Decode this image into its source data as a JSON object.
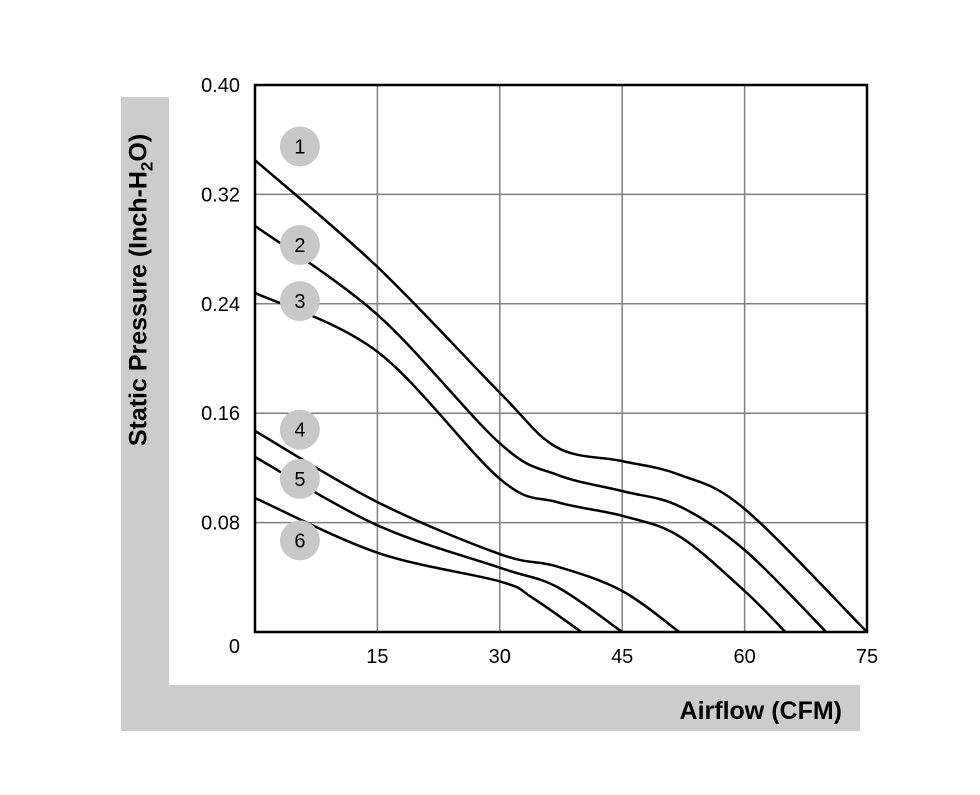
{
  "chart_data": {
    "type": "line",
    "xlabel": "Airflow (CFM)",
    "ylabel_main": "Static Pressure (Inch-H",
    "ylabel_sub": "2",
    "ylabel_end": "O)",
    "xlim": [
      0,
      75
    ],
    "ylim": [
      0,
      0.4
    ],
    "x_ticks": [
      15,
      30,
      45,
      60,
      75
    ],
    "x_tick_labels": [
      "15",
      "30",
      "45",
      "60",
      "75"
    ],
    "y_ticks": [
      0.08,
      0.16,
      0.24,
      0.32,
      0.4
    ],
    "y_tick_labels": [
      "0.08",
      "0.16",
      "0.24",
      "0.32",
      "0.40"
    ],
    "origin_label": "0",
    "grid": true,
    "series": [
      {
        "name": "1",
        "label_xy": [
          5.5,
          0.355
        ],
        "points": [
          [
            0,
            0.345
          ],
          [
            15,
            0.267
          ],
          [
            30,
            0.175
          ],
          [
            37,
            0.135
          ],
          [
            45,
            0.125
          ],
          [
            52,
            0.115
          ],
          [
            60,
            0.09
          ],
          [
            75,
            0.0
          ]
        ]
      },
      {
        "name": "2",
        "label_xy": [
          5.5,
          0.283
        ],
        "points": [
          [
            0,
            0.297
          ],
          [
            15,
            0.232
          ],
          [
            30,
            0.138
          ],
          [
            37,
            0.115
          ],
          [
            45,
            0.103
          ],
          [
            52,
            0.092
          ],
          [
            60,
            0.06
          ],
          [
            70,
            0.0
          ]
        ]
      },
      {
        "name": "3",
        "label_xy": [
          5.5,
          0.242
        ],
        "points": [
          [
            0,
            0.248
          ],
          [
            15,
            0.205
          ],
          [
            30,
            0.112
          ],
          [
            37,
            0.095
          ],
          [
            45,
            0.085
          ],
          [
            52,
            0.07
          ],
          [
            60,
            0.03
          ],
          [
            65,
            0.0
          ]
        ]
      },
      {
        "name": "4",
        "label_xy": [
          5.5,
          0.148
        ],
        "points": [
          [
            0,
            0.147
          ],
          [
            15,
            0.095
          ],
          [
            30,
            0.057
          ],
          [
            37,
            0.048
          ],
          [
            45,
            0.03
          ],
          [
            52,
            0.0
          ]
        ]
      },
      {
        "name": "5",
        "label_xy": [
          5.5,
          0.112
        ],
        "points": [
          [
            0,
            0.128
          ],
          [
            15,
            0.078
          ],
          [
            30,
            0.047
          ],
          [
            37,
            0.033
          ],
          [
            45,
            0.0
          ]
        ]
      },
      {
        "name": "6",
        "label_xy": [
          5.5,
          0.067
        ],
        "points": [
          [
            0,
            0.098
          ],
          [
            15,
            0.058
          ],
          [
            30,
            0.037
          ],
          [
            34,
            0.025
          ],
          [
            40,
            0.0
          ]
        ]
      }
    ]
  }
}
